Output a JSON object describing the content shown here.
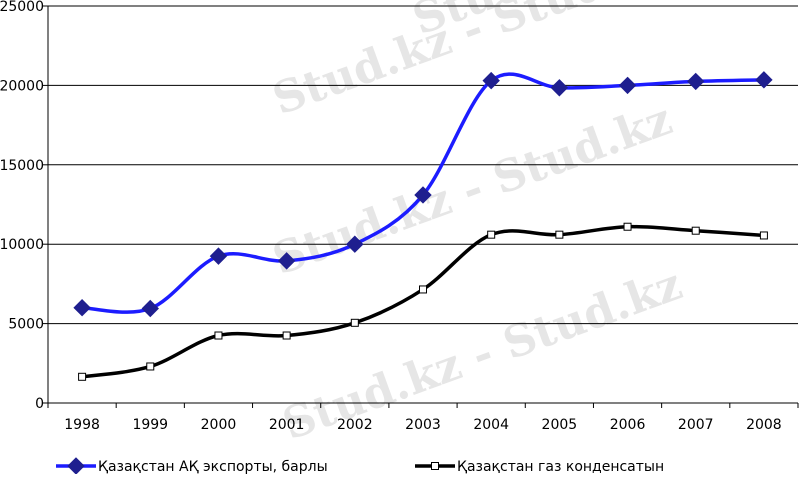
{
  "watermark": {
    "text": "Stud.kz - Stud.kz"
  },
  "chart_data": {
    "type": "line",
    "categories": [
      "1998",
      "1999",
      "2000",
      "2001",
      "2002",
      "2003",
      "2004",
      "2005",
      "2006",
      "2007",
      "2008"
    ],
    "ylim": [
      0,
      25000
    ],
    "yticks": [
      0,
      5000,
      10000,
      15000,
      20000,
      25000
    ],
    "grid": true,
    "legend_position": "bottom",
    "series": [
      {
        "name": "Қазақстан АҚ экспорты, барлы",
        "values": [
          6000,
          5950,
          9250,
          8950,
          10000,
          13100,
          20300,
          19850,
          20000,
          20250,
          20350
        ],
        "color": "#1c1cff",
        "marker": "diamond",
        "marker_color": "#1f1f8f"
      },
      {
        "name": "Қазақстан газ конденсатын",
        "values": [
          1650,
          2300,
          4250,
          4250,
          5050,
          7150,
          10600,
          10600,
          11100,
          10850,
          10550
        ],
        "color": "#000000",
        "marker": "square",
        "marker_color": "#ffffff"
      }
    ]
  }
}
